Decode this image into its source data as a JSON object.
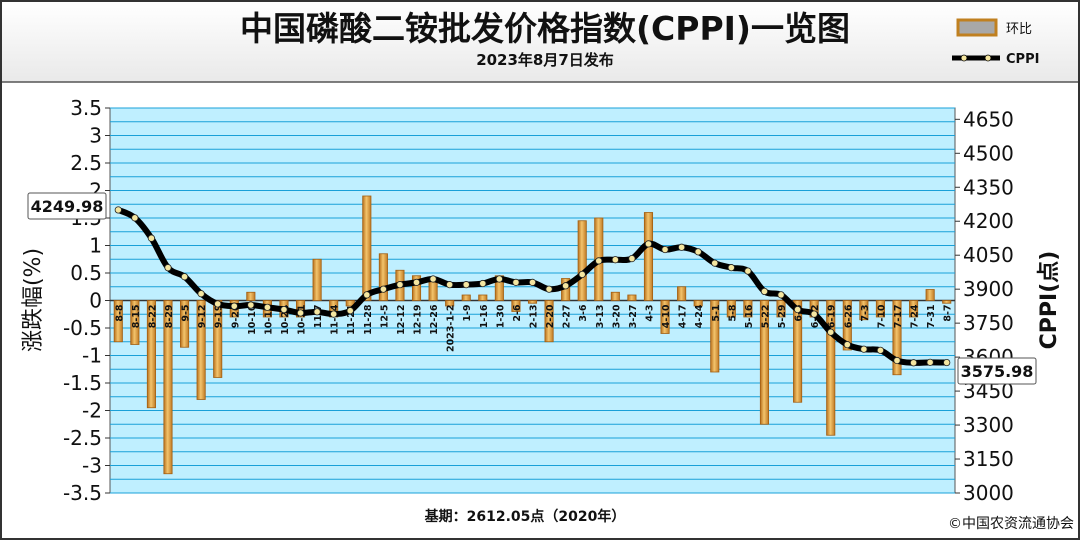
{
  "header": {
    "title": "中国磷酸二铵批发价格指数(CPPI)一览图",
    "subtitle": "2023年8月7日发布"
  },
  "legend": {
    "bar_label": "环比",
    "line_label": "CPPI"
  },
  "footer": {
    "base_note": "基期：2612.05点（2020年）",
    "copyright": "©中国农资流通协会"
  },
  "colors": {
    "plot_bg": "#bfefff",
    "grid": "#1aa0d8",
    "bar_fill": "#e0a64a",
    "bar_edge": "#a35f12",
    "line": "#000000",
    "marker": "#f5e6a0"
  },
  "chart_data": {
    "type": "bar+line",
    "ylabel": "涨跌幅(%)",
    "y2label": "CPPI(点)",
    "ylim": [
      -3.5,
      3.5
    ],
    "y2lim": [
      3000,
      4700
    ],
    "yticks": [
      "3.5",
      "3",
      "2.5",
      "2",
      "1.5",
      "1",
      "0.5",
      "0",
      "-0.5",
      "-1",
      "-1.5",
      "-2",
      "-2.5",
      "-3",
      "-3.5"
    ],
    "y2ticks": [
      "4650",
      "4500",
      "4350",
      "4200",
      "4050",
      "3900",
      "3750",
      "3600",
      "3450",
      "3300",
      "3150",
      "3000"
    ],
    "categories": [
      "8-8",
      "8-15",
      "8-22",
      "8-29",
      "9-5",
      "9-12",
      "9-19",
      "9-26",
      "10-10",
      "10-17",
      "10-24",
      "10-31",
      "11-7",
      "11-14",
      "11-21",
      "11-28",
      "12-5",
      "12-12",
      "12-19",
      "12-26",
      "2023-1-2",
      "1-9",
      "1-16",
      "1-30",
      "2-6",
      "2-13",
      "2-20",
      "2-27",
      "3-6",
      "3-13",
      "3-20",
      "3-27",
      "4-3",
      "4-10",
      "4-17",
      "4-24",
      "5-1",
      "5-8",
      "5-16",
      "5-22",
      "5-29",
      "6-5",
      "6-12",
      "6-19",
      "6-26",
      "7-3",
      "7-10",
      "7-17",
      "7-24",
      "7-31",
      "8-7"
    ],
    "series": [
      {
        "name": "环比",
        "type": "bar",
        "values": [
          -0.75,
          -0.8,
          -1.95,
          -3.15,
          -0.85,
          -1.8,
          -1.4,
          -0.3,
          0.15,
          -0.3,
          -0.3,
          -0.3,
          0.75,
          -0.3,
          -0.1,
          1.9,
          0.85,
          0.55,
          0.45,
          0.4,
          -0.1,
          0.1,
          0.1,
          0.45,
          -0.2,
          -0.05,
          -0.75,
          0.4,
          1.45,
          1.5,
          0.15,
          0.1,
          1.6,
          -0.6,
          0.25,
          -0.1,
          -1.3,
          -0.3,
          -0.3,
          -2.25,
          -0.3,
          -1.85,
          -0.3,
          -2.45,
          -0.9,
          -0.35,
          -0.3,
          -1.35,
          -0.3,
          0.2,
          -0.05
        ]
      },
      {
        "name": "CPPI",
        "type": "line",
        "values": [
          4249.98,
          4215,
          4125,
          3995,
          3955,
          3880,
          3835,
          3825,
          3830,
          3820,
          3810,
          3795,
          3800,
          3790,
          3805,
          3875,
          3900,
          3920,
          3930,
          3945,
          3920,
          3920,
          3925,
          3945,
          3930,
          3930,
          3900,
          3915,
          3965,
          4025,
          4030,
          4035,
          4100,
          4075,
          4085,
          4065,
          4015,
          3995,
          3980,
          3890,
          3875,
          3810,
          3790,
          3710,
          3655,
          3635,
          3630,
          3585,
          3575,
          3577,
          3575.98
        ]
      }
    ],
    "annotations": [
      "4249.98",
      "3575.98"
    ]
  }
}
